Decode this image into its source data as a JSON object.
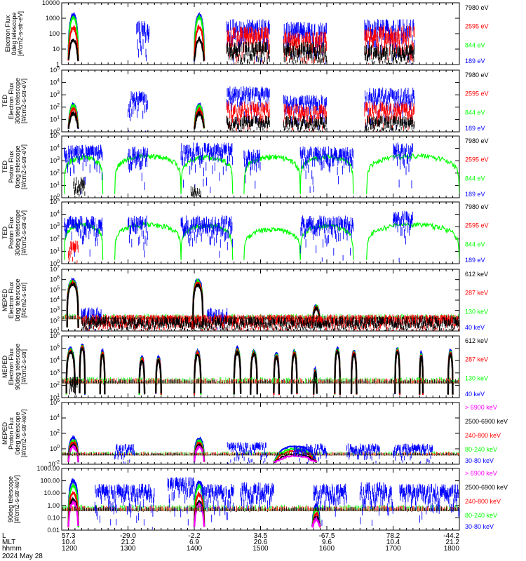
{
  "figure": {
    "date_label": "2024 May 28"
  },
  "footer": {
    "row_labels": [
      "L",
      "MLT",
      "hhmm"
    ],
    "columns": [
      {
        "l": "57.3",
        "mlt": "10.4",
        "hhmm": "1200"
      },
      {
        "l": "-29.0",
        "mlt": "21.2",
        "hhmm": "1300"
      },
      {
        "l": "-2.2",
        "mlt": "6.9",
        "hhmm": "1400"
      },
      {
        "l": "34.5",
        "mlt": "20.6",
        "hhmm": "1500"
      },
      {
        "l": "-67.5",
        "mlt": "9.6",
        "hhmm": "1600"
      },
      {
        "l": "78.2",
        "mlt": "10.4",
        "hhmm": "1700"
      },
      {
        "l": "-44.2",
        "mlt": "21.2",
        "hhmm": "1800"
      }
    ]
  },
  "colors": {
    "black": "#000000",
    "red": "#ff0000",
    "green": "#00ff00",
    "blue": "#0000ff",
    "magenta": "#ff00ff"
  },
  "chart_data": [
    {
      "type": "line",
      "ylabel_lines": [
        "Electron Flux",
        "0deg telescope",
        "[#/cm2-s-str-eV]"
      ],
      "yscale": "log",
      "ylim": [
        1,
        10000
      ],
      "yticks": [
        "1",
        "10",
        "100",
        "1000",
        "10000"
      ],
      "ytick_style": "plain",
      "xlim": [
        1200,
        1800
      ],
      "series": [
        {
          "name": "7980 eV",
          "color": "black"
        },
        {
          "name": "2595 eV",
          "color": "red"
        },
        {
          "name": "844 eV",
          "color": "green"
        },
        {
          "name": "189 eV",
          "color": "blue"
        }
      ],
      "bumps": [
        [
          1210,
          1225,
          1600,
          1100,
          250,
          40
        ],
        [
          1400,
          1225,
          1600,
          1100,
          250,
          40
        ]
      ],
      "noise": {
        "blue": [
          [
            1313,
            1332,
            700
          ],
          [
            1449,
            1514,
            900
          ],
          [
            1535,
            1600,
            600
          ],
          [
            1657,
            1732,
            900
          ]
        ],
        "red": [
          [
            1449,
            1514,
            300
          ],
          [
            1535,
            1600,
            150
          ],
          [
            1657,
            1732,
            350
          ]
        ],
        "black": [
          [
            1449,
            1514,
            30
          ],
          [
            1535,
            1600,
            30
          ],
          [
            1657,
            1732,
            20
          ]
        ]
      }
    },
    {
      "type": "line",
      "ylabel_lines": [
        "TED",
        "Electron Flux",
        "30deg telescope",
        "[#/cm2-s-str-eV]"
      ],
      "yscale": "log",
      "ylim": [
        1,
        100000
      ],
      "yticks": [
        "10^0",
        "10^1",
        "10^2",
        "10^3",
        "10^4",
        "10^5"
      ],
      "ytick_style": "power",
      "xlim": [
        1200,
        1800
      ],
      "series": [
        {
          "name": "7980 eV",
          "color": "black"
        },
        {
          "name": "2595 eV",
          "color": "red"
        },
        {
          "name": "844 eV",
          "color": "green"
        },
        {
          "name": "189 eV",
          "color": "blue"
        }
      ],
      "bumps": [
        [
          1210,
          1225,
          160,
          130,
          70,
          30
        ],
        [
          1400,
          1225,
          150,
          120,
          60,
          30
        ]
      ],
      "noise": {
        "blue": [
          [
            1300,
            1330,
            2000
          ],
          [
            1449,
            1514,
            5000
          ],
          [
            1535,
            1600,
            1000
          ],
          [
            1657,
            1732,
            4000
          ]
        ],
        "red": [
          [
            1449,
            1514,
            300
          ],
          [
            1535,
            1600,
            200
          ],
          [
            1657,
            1732,
            300
          ]
        ],
        "black": [
          [
            1449,
            1514,
            20
          ],
          [
            1535,
            1600,
            20
          ],
          [
            1657,
            1732,
            20
          ]
        ]
      }
    },
    {
      "type": "line",
      "ylabel_lines": [
        "TED",
        "Proton Flux",
        "0deg telescope",
        "[#/cm2-s-str-eV]"
      ],
      "yscale": "log",
      "ylim": [
        1,
        100000
      ],
      "yticks": [
        "10^0",
        "10^1",
        "10^2",
        "10^3",
        "10^4",
        "10^5"
      ],
      "ytick_style": "power",
      "xlim": [
        1200,
        1800
      ],
      "series": [
        {
          "name": "7980 eV",
          "color": "black"
        },
        {
          "name": "2595 eV",
          "color": "red"
        },
        {
          "name": "844 eV",
          "color": "green"
        },
        {
          "name": "189 eV",
          "color": "blue"
        }
      ],
      "bumps": [],
      "arcs": [
        [
          1204,
          1262,
          2000
        ],
        [
          1280,
          1380,
          2500
        ],
        [
          1380,
          1458,
          2000
        ],
        [
          1475,
          1560,
          2000
        ],
        [
          1560,
          1640,
          2200
        ],
        [
          1660,
          1800,
          2500
        ]
      ],
      "noise": {
        "blue": [
          [
            1204,
            1262,
            20000
          ],
          [
            1300,
            1330,
            15000
          ],
          [
            1380,
            1458,
            30000
          ],
          [
            1475,
            1500,
            8000
          ],
          [
            1560,
            1640,
            15000
          ],
          [
            1700,
            1730,
            30000
          ]
        ],
        "black": [
          [
            1218,
            1235,
            50
          ],
          [
            1395,
            1410,
            10
          ]
        ]
      }
    },
    {
      "type": "line",
      "ylabel_lines": [
        "TED",
        "Proton Flux",
        "30deg telescope",
        "[#/cm2-s-str-eV]"
      ],
      "yscale": "log",
      "ylim": [
        1,
        100000
      ],
      "yticks": [
        "10^0",
        "10^1",
        "10^2",
        "10^3",
        "10^4",
        "10^5"
      ],
      "ytick_style": "power",
      "xlim": [
        1200,
        1800
      ],
      "series": [
        {
          "name": "7980 eV",
          "color": "black"
        },
        {
          "name": "2595 eV",
          "color": "red"
        },
        {
          "name": "844 eV",
          "color": "green"
        },
        {
          "name": "189 eV",
          "color": "blue"
        }
      ],
      "bumps": [],
      "arcs": [
        [
          1204,
          1262,
          1500
        ],
        [
          1280,
          1380,
          1500
        ],
        [
          1380,
          1458,
          1200
        ],
        [
          1475,
          1560,
          600
        ],
        [
          1560,
          1640,
          1200
        ],
        [
          1660,
          1800,
          1500
        ]
      ],
      "noise": {
        "blue": [
          [
            1204,
            1262,
            8000
          ],
          [
            1300,
            1330,
            8000
          ],
          [
            1380,
            1458,
            8000
          ],
          [
            1560,
            1640,
            8000
          ],
          [
            1700,
            1730,
            20000
          ]
        ],
        "red": [
          [
            1210,
            1225,
            80
          ]
        ]
      }
    },
    {
      "type": "line",
      "ylabel_lines": [
        "MEPED",
        "Electron Flux",
        "0deg telescope",
        "[#/cm2-s-str]"
      ],
      "yscale": "log",
      "ylim": [
        10,
        10000000
      ],
      "yticks": [
        "10^1",
        "10^2",
        "10^3",
        "10^4",
        "10^5",
        "10^6",
        "10^7"
      ],
      "ytick_style": "power",
      "xlim": [
        1200,
        1800
      ],
      "series": [
        {
          "name": "612 keV",
          "color": "black"
        },
        {
          "name": "287 keV",
          "color": "red"
        },
        {
          "name": "130 keV",
          "color": "green"
        },
        {
          "name": "40 keV",
          "color": "blue"
        }
      ],
      "bumps": [
        [
          1208,
          1225,
          900000,
          700000,
          500000,
          350000
        ],
        [
          1398,
          1225,
          850000,
          650000,
          450000,
          300000
        ],
        [
          1578,
          1590,
          3000,
          2500,
          2000,
          1500
        ]
      ],
      "floor": 200,
      "noise": {
        "blue": [
          [
            1230,
            1260,
            2000
          ],
          [
            1420,
            1450,
            2000
          ]
        ],
        "red": [
          [
            1230,
            1800,
            400
          ]
        ],
        "black": [
          [
            1230,
            1800,
            250
          ]
        ]
      }
    },
    {
      "type": "line",
      "ylabel_lines": [
        "MEPED",
        "Electron Flux",
        "90deg telescope",
        "[#/cm2-s-str]"
      ],
      "yscale": "log",
      "ylim": [
        10,
        1000000
      ],
      "yticks": [
        "10^1",
        "10^2",
        "10^3",
        "10^4",
        "10^5",
        "10^6"
      ],
      "ytick_style": "power",
      "xlim": [
        1200,
        1800
      ],
      "series": [
        {
          "name": "612 keV",
          "color": "black"
        },
        {
          "name": "287 keV",
          "color": "red"
        },
        {
          "name": "130 keV",
          "color": "green"
        },
        {
          "name": "40 keV",
          "color": "blue"
        }
      ],
      "bumps": [
        [
          1207,
          1220,
          100000,
          80000,
          60000,
          50000
        ],
        [
          1227,
          1235,
          200000,
          150000,
          120000,
          100000
        ],
        [
          1258,
          1265,
          60000,
          50000,
          40000,
          30000
        ],
        [
          1317,
          1325,
          20000,
          15000,
          12000,
          10000
        ],
        [
          1342,
          1350,
          20000,
          15000,
          12000,
          10000
        ],
        [
          1400,
          1410,
          60000,
          50000,
          40000,
          30000
        ],
        [
          1460,
          1470,
          100000,
          80000,
          60000,
          50000
        ],
        [
          1485,
          1495,
          60000,
          50000,
          40000,
          30000
        ],
        [
          1520,
          1528,
          40000,
          30000,
          25000,
          20000
        ],
        [
          1547,
          1555,
          60000,
          50000,
          40000,
          30000
        ],
        [
          1580,
          1585,
          2000,
          1500,
          1200,
          1000
        ],
        [
          1612,
          1620,
          100000,
          80000,
          60000,
          50000
        ],
        [
          1637,
          1645,
          60000,
          50000,
          40000,
          30000
        ],
        [
          1703,
          1710,
          100000,
          80000,
          60000,
          50000
        ],
        [
          1740,
          1745,
          40000,
          30000,
          25000,
          20000
        ],
        [
          1783,
          1790,
          60000,
          50000,
          40000,
          30000
        ]
      ],
      "floor": 200,
      "noise": {
        "black": [
          [
            1212,
            1225,
            500
          ]
        ]
      }
    },
    {
      "type": "line",
      "ylabel_lines": [
        "MEPED",
        "Proton Flux",
        "0deg telescope",
        "[#/cm2-s-str-keV]"
      ],
      "yscale": "log",
      "ylim": [
        0.01,
        1000000
      ],
      "yticks": [
        "10^-2",
        "10^0",
        "10^2",
        "10^4",
        "10^6"
      ],
      "ytick_style": "power",
      "xlim": [
        1200,
        1800
      ],
      "series": [
        {
          "name": "> 6900 keV",
          "color": "magenta"
        },
        {
          "name": "2500-6900 keV",
          "color": "black"
        },
        {
          "name": "240-800 keV",
          "color": "red"
        },
        {
          "name": "80-240 keV",
          "color": "green"
        },
        {
          "name": "30-80 keV",
          "color": "blue"
        }
      ],
      "bumps": [
        [
          1210,
          1225,
          25,
          12,
          6,
          3
        ],
        [
          1400,
          1225,
          20,
          10,
          5,
          3
        ],
        [
          1520,
          1585,
          2,
          1,
          0.5,
          0.2
        ]
      ],
      "floor": 0.2,
      "noise": {
        "blue": [
          [
            1280,
            1310,
            5
          ],
          [
            1450,
            1510,
            8
          ],
          [
            1550,
            1600,
            5
          ],
          [
            1630,
            1680,
            5
          ],
          [
            1700,
            1760,
            5
          ]
        ]
      }
    },
    {
      "type": "line",
      "ylabel_lines": [
        "90deg telescope",
        "[#/cm2-s-str-keV]"
      ],
      "yscale": "log",
      "ylim": [
        0.01,
        1000
      ],
      "yticks": [
        "0.01",
        "0.10",
        "1.00",
        "10.00",
        "100.00",
        "1000.00"
      ],
      "ytick_style": "plain",
      "xlim": [
        1200,
        1800
      ],
      "series": [
        {
          "name": "> 6900 keV",
          "color": "magenta"
        },
        {
          "name": "2500-6900 keV",
          "color": "black"
        },
        {
          "name": "240-800 keV",
          "color": "red"
        },
        {
          "name": "80-240 keV",
          "color": "green"
        },
        {
          "name": "30-80 keV",
          "color": "blue"
        }
      ],
      "bumps": [
        [
          1210,
          1225,
          100,
          40,
          10,
          3
        ],
        [
          1400,
          1225,
          80,
          35,
          8,
          2
        ],
        [
          1578,
          1590,
          1,
          0.5,
          0.2,
          0.1
        ]
      ],
      "floor": 0.5,
      "noise": {
        "blue": [
          [
            1250,
            1340,
            60
          ],
          [
            1360,
            1400,
            200
          ],
          [
            1410,
            1460,
            60
          ],
          [
            1470,
            1520,
            80
          ],
          [
            1580,
            1630,
            60
          ],
          [
            1650,
            1700,
            80
          ],
          [
            1710,
            1800,
            60
          ]
        ]
      }
    }
  ]
}
